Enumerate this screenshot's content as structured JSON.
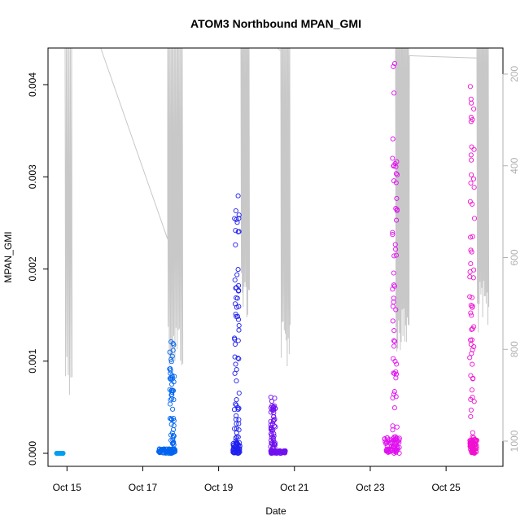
{
  "chart_data": {
    "type": "scatter",
    "title": "ATOM3 Northbound MPAN_GMI",
    "xlabel": "Date",
    "ylabel": "MPAN_GMI",
    "xlim": [
      "2016-10-14T12:00",
      "2016-10-26T12:00"
    ],
    "ylim": [
      0,
      0.0044
    ],
    "y_ticks": [
      0.0,
      0.001,
      0.002,
      0.003,
      0.004
    ],
    "y_tick_labels": [
      "0.000",
      "0.001",
      "0.002",
      "0.003",
      "0.004"
    ],
    "x_ticks": [
      "2016-10-15",
      "2016-10-17",
      "2016-10-19",
      "2016-10-21",
      "2016-10-23",
      "2016-10-25"
    ],
    "x_tick_labels": [
      "Oct 15",
      "Oct 17",
      "Oct 19",
      "Oct 21",
      "Oct 23",
      "Oct 25"
    ],
    "y2lim": [
      1050,
      120
    ],
    "y2_ticks": [
      200,
      400,
      600,
      800,
      1000
    ],
    "y2_tick_labels": [
      "200",
      "400",
      "600",
      "800",
      "1000"
    ],
    "grid": false,
    "series": [
      {
        "color": "#00a0f0",
        "start": "2016-10-14T17:30",
        "end": "2016-10-14T21:30",
        "max": 0.0,
        "peak": "2016-10-14T19:30"
      },
      {
        "color": "#0064f0",
        "start": "2016-10-17T10:00",
        "end": "2016-10-17T20:30",
        "max": 0.00121,
        "peak": "2016-10-17T18:30"
      },
      {
        "color": "#2020f0",
        "start": "2016-10-19T09:00",
        "end": "2016-10-19T13:30",
        "max": 0.00293,
        "peak": "2016-10-19T11:30"
      },
      {
        "color": "#7010f0",
        "start": "2016-10-20T09:00",
        "end": "2016-10-20T18:30",
        "max": 0.00069,
        "peak": "2016-10-20T10:30"
      },
      {
        "color": "#e010f0",
        "start": "2016-10-23T09:00",
        "end": "2016-10-23T18:30",
        "max": 0.00423,
        "peak": "2016-10-23T15:30"
      },
      {
        "color": "#f010d0",
        "start": "2016-10-25T15:00",
        "end": "2016-10-25T19:30",
        "max": 0.00398,
        "peak": "2016-10-25T16:30"
      }
    ],
    "altitude_line_color": "#c8c8c8"
  }
}
